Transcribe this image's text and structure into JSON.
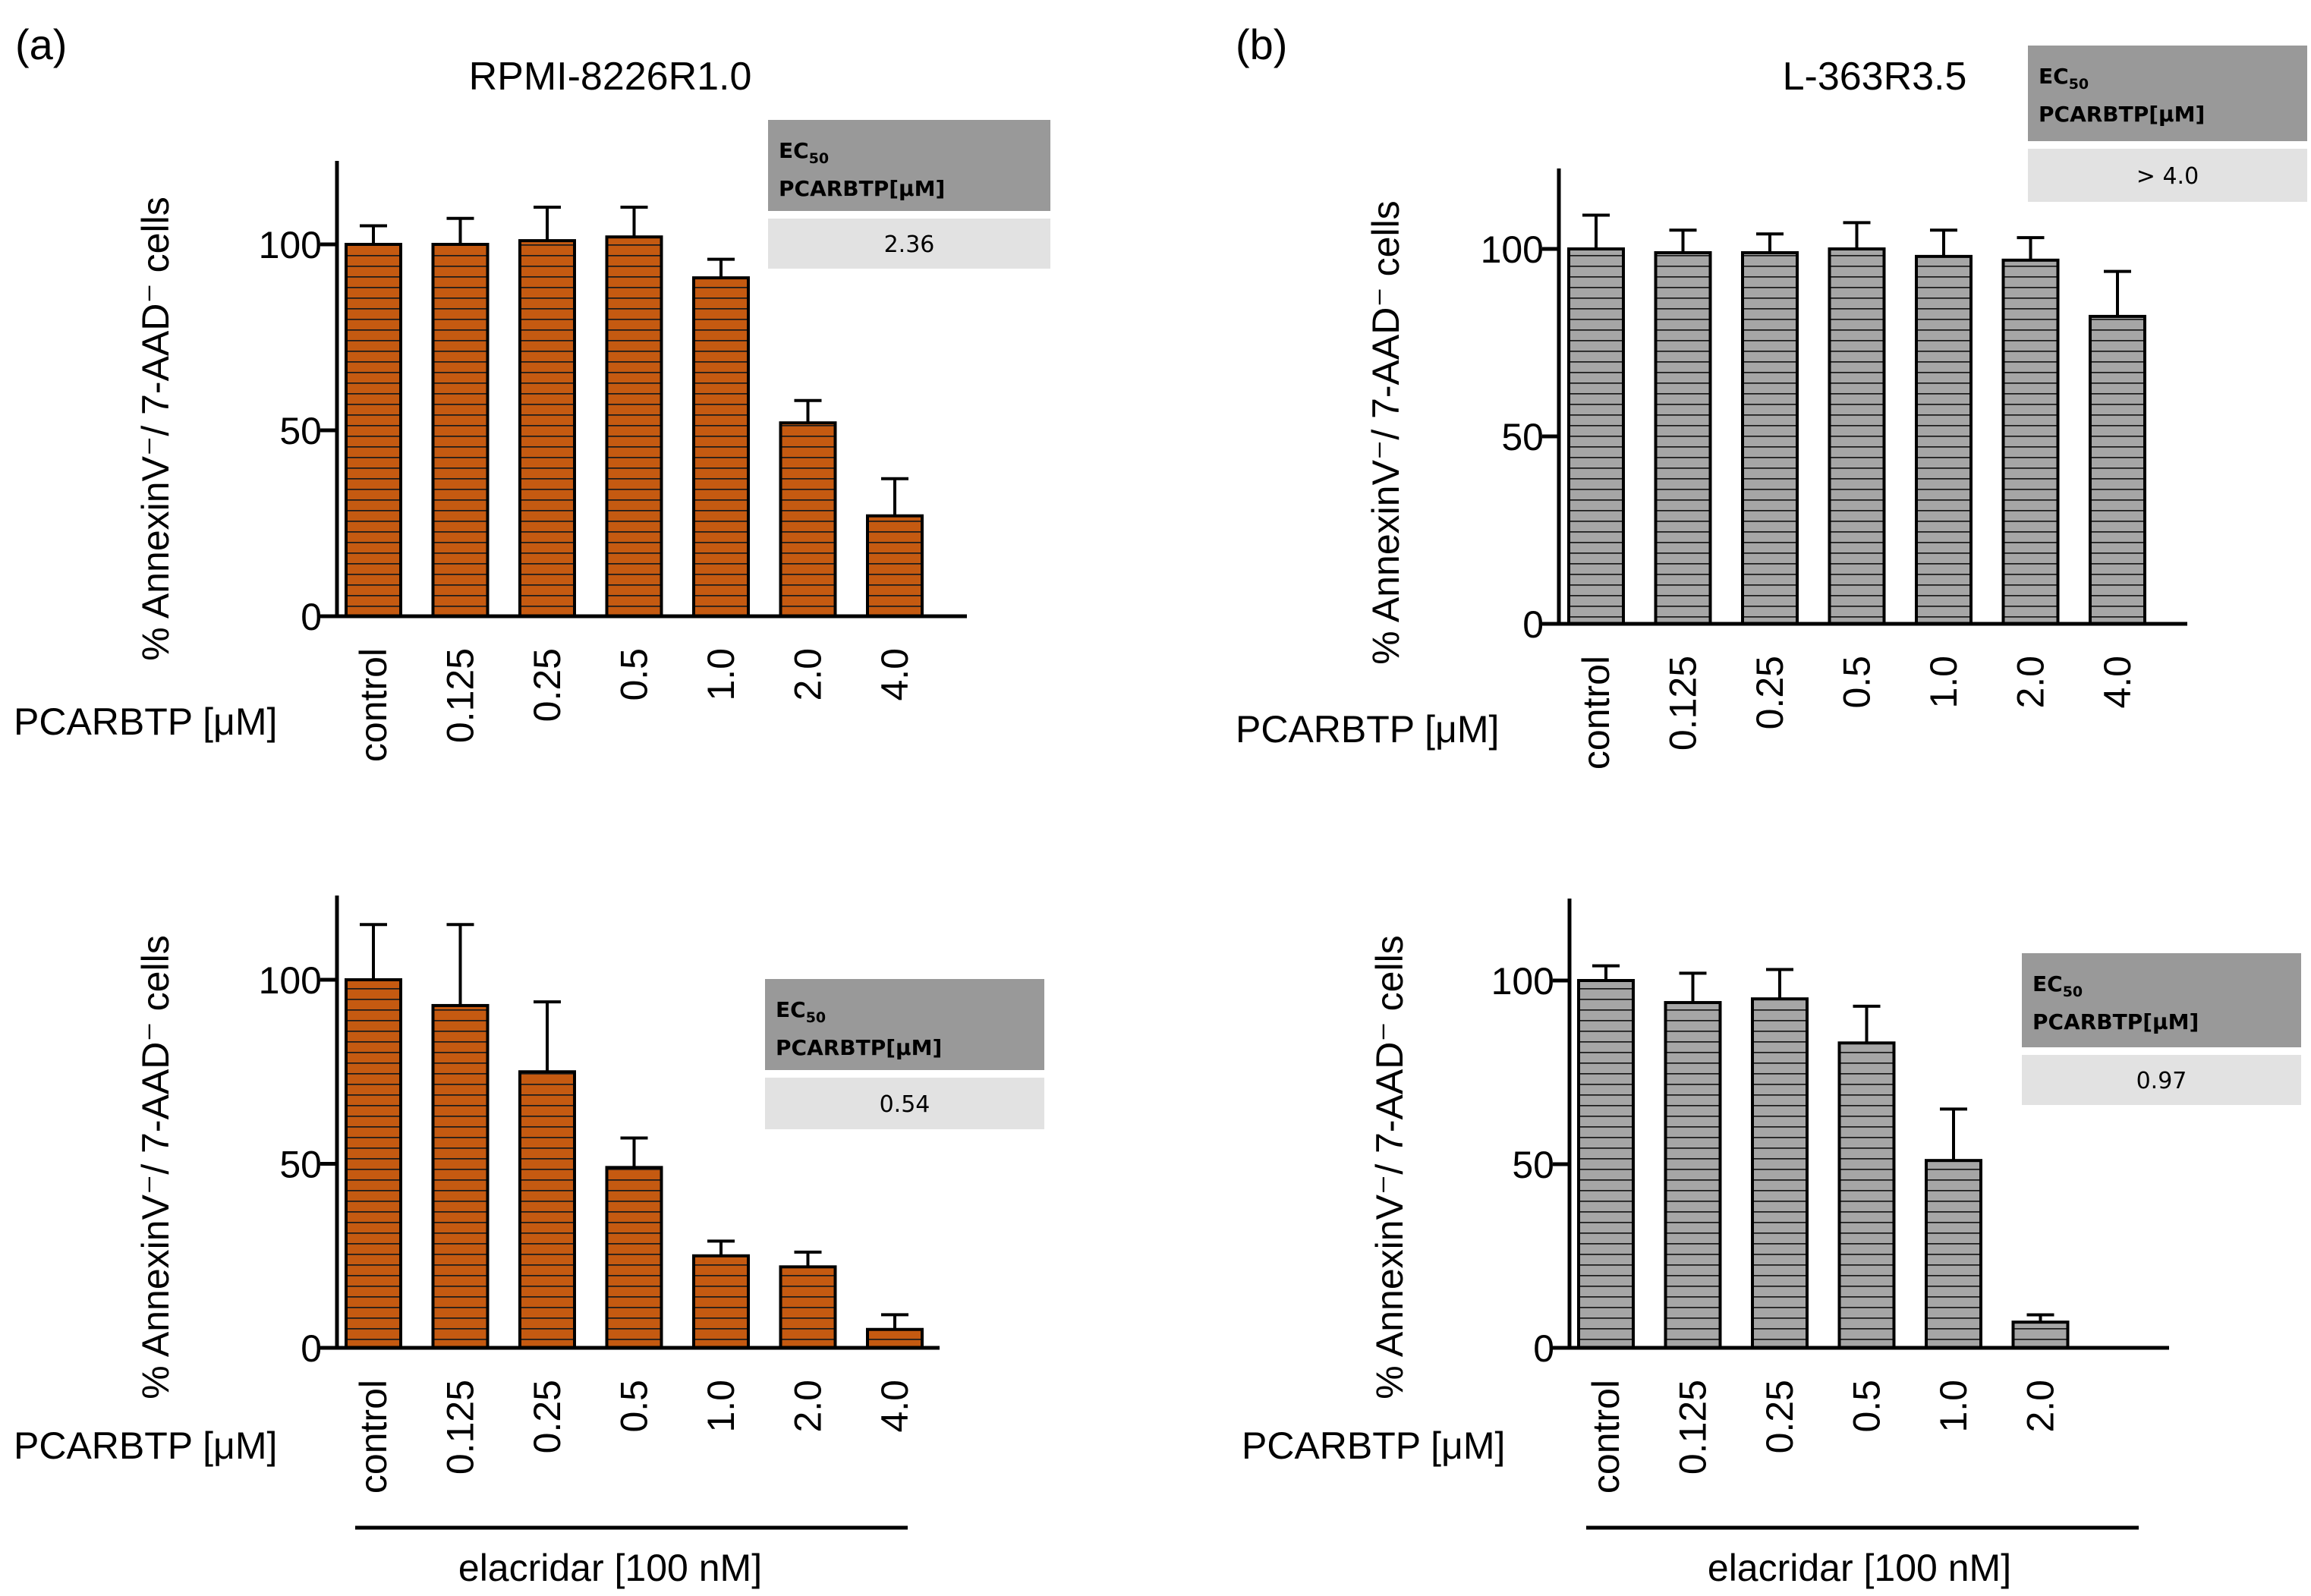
{
  "panels": {
    "a": {
      "label": "(a)",
      "title": "RPMI-8226R1.0"
    },
    "b": {
      "label": "(b)",
      "title": "L-363R3.5"
    }
  },
  "colors": {
    "orange": "#c55a11",
    "gray": "#a6a6a6",
    "box_header": "#999999",
    "box_value": "#e2e2e2"
  },
  "chart_data": [
    {
      "id": "a_top",
      "type": "bar",
      "title": "RPMI-8226R1.0",
      "ylabel": "% AnnexinV⁻/ 7-AAD⁻ cells",
      "xlabel": "PCARBTP [μM]",
      "categories": [
        "control",
        "0.125",
        "0.25",
        "0.5",
        "1.0",
        "2.0",
        "4.0"
      ],
      "values": [
        100,
        100,
        101,
        102,
        91,
        52,
        27
      ],
      "errors": [
        5,
        7,
        9,
        8,
        5,
        6,
        10
      ],
      "ylim": [
        0,
        120
      ],
      "yticks": [
        0,
        50,
        100
      ],
      "ec50": {
        "header1": "EC",
        "sub": "50",
        "header2": "PCARBTP[μM]",
        "value": "2.36"
      },
      "treatment": ""
    },
    {
      "id": "b_top",
      "type": "bar",
      "title": "L-363R3.5",
      "ylabel": "% AnnexinV⁻/ 7-AAD⁻ cells",
      "xlabel": "PCARBTP [μM]",
      "categories": [
        "control",
        "0.125",
        "0.25",
        "0.5",
        "1.0",
        "2.0",
        "4.0"
      ],
      "values": [
        100,
        99,
        99,
        100,
        98,
        97,
        82
      ],
      "errors": [
        9,
        6,
        5,
        7,
        7,
        6,
        12
      ],
      "ylim": [
        0,
        120
      ],
      "yticks": [
        0,
        50,
        100
      ],
      "ec50": {
        "header1": "EC",
        "sub": "50",
        "header2": "PCARBTP[μM]",
        "value": "> 4.0"
      },
      "treatment": ""
    },
    {
      "id": "a_bottom",
      "type": "bar",
      "title": "",
      "ylabel": "% AnnexinV⁻/ 7-AAD⁻ cells",
      "xlabel": "PCARBTP [μM]",
      "categories": [
        "control",
        "0.125",
        "0.25",
        "0.5",
        "1.0",
        "2.0",
        "4.0"
      ],
      "values": [
        100,
        93,
        75,
        49,
        25,
        22,
        5
      ],
      "errors": [
        15,
        22,
        19,
        8,
        4,
        4,
        4
      ],
      "ylim": [
        0,
        120
      ],
      "yticks": [
        0,
        50,
        100
      ],
      "ec50": {
        "header1": "EC",
        "sub": "50",
        "header2": "PCARBTP[μM]",
        "value": "0.54"
      },
      "treatment": "elacridar [100 nM]"
    },
    {
      "id": "b_bottom",
      "type": "bar",
      "title": "",
      "ylabel": "% AnnexinV⁻/ 7-AAD⁻ cells",
      "xlabel": "PCARBTP [μM]",
      "categories": [
        "control",
        "0.125",
        "0.25",
        "0.5",
        "1.0",
        "2.0"
      ],
      "values": [
        100,
        94,
        95,
        83,
        51,
        7
      ],
      "errors": [
        4,
        8,
        8,
        10,
        14,
        2
      ],
      "ylim": [
        0,
        120
      ],
      "yticks": [
        0,
        50,
        100
      ],
      "ec50": {
        "header1": "EC",
        "sub": "50",
        "header2": "PCARBTP[μM]",
        "value": "0.97"
      },
      "treatment": "elacridar [100 nM]"
    }
  ]
}
